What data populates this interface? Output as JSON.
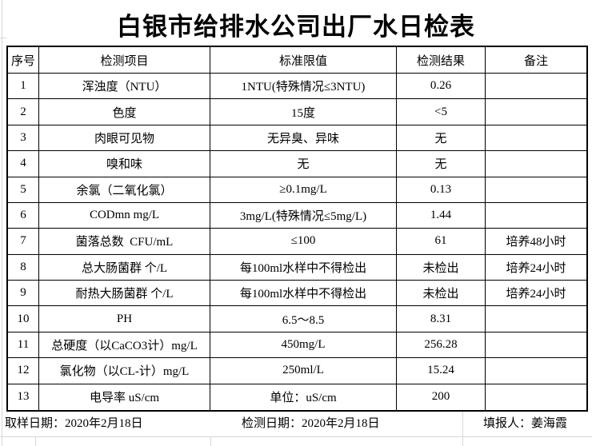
{
  "title": "白银市给排水公司出厂水日检表",
  "table": {
    "headers": [
      "序号",
      "检测项目",
      "标准限值",
      "检测结果",
      "备注"
    ],
    "rows": [
      {
        "no": "1",
        "item": "浑浊度（NTU）",
        "limit": "1NTU(特殊情况≤3NTU)",
        "result": "0.26",
        "note": ""
      },
      {
        "no": "2",
        "item": "色度",
        "limit": "15度",
        "result": "<5",
        "note": ""
      },
      {
        "no": "3",
        "item": "肉眼可见物",
        "limit": "无异臭、异味",
        "result": "无",
        "note": ""
      },
      {
        "no": "4",
        "item": "嗅和味",
        "limit": "无",
        "result": "无",
        "note": ""
      },
      {
        "no": "5",
        "item": "余氯（二氧化氯）",
        "limit": "≥0.1mg/L",
        "result": "0.13",
        "note": ""
      },
      {
        "no": "6",
        "item": "CODmn mg/L",
        "limit": "3mg/L(特殊情况≤5mg/L)",
        "result": "1.44",
        "note": ""
      },
      {
        "no": "7",
        "item": "菌落总数  CFU/mL",
        "limit": "≤100",
        "result": "61",
        "note": "培养48小时"
      },
      {
        "no": "8",
        "item": "总大肠菌群 个/L",
        "limit": "每100ml水样中不得检出",
        "result": "未检出",
        "note": "培养24小时"
      },
      {
        "no": "9",
        "item": "耐热大肠菌群 个/L",
        "limit": "每100ml水样中不得检出",
        "result": "未检出",
        "note": "培养24小时"
      },
      {
        "no": "10",
        "item": "PH",
        "limit": "6.5～8.5",
        "result": "8.31",
        "note": ""
      },
      {
        "no": "11",
        "item": "总硬度（以CaCO3计）mg/L",
        "limit": "450mg/L",
        "result": "256.28",
        "note": ""
      },
      {
        "no": "12",
        "item": "氯化物（以CL-计）mg/L",
        "limit": "250ml/L",
        "result": "15.24",
        "note": ""
      },
      {
        "no": "13",
        "item": "电导率 uS/cm",
        "limit": "单位：uS/cm",
        "result": "200",
        "note": ""
      }
    ]
  },
  "footer": {
    "sampling_date": "取样日期：2020年2月18日",
    "test_date": "检测日期：2020年2月18日",
    "reporter": "填报人：姜海霞"
  }
}
